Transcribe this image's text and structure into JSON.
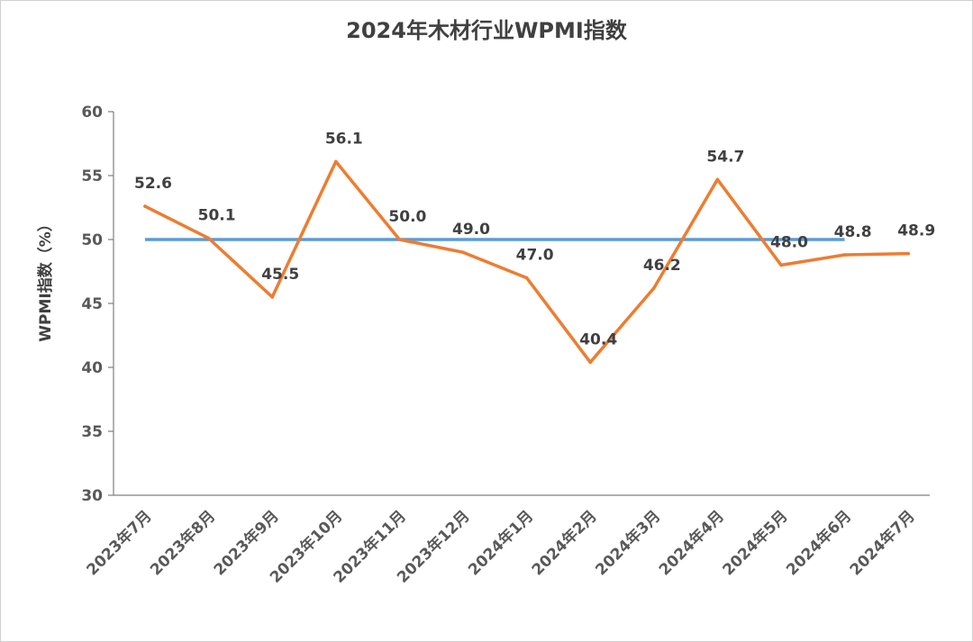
{
  "chart_data": {
    "type": "line",
    "title": "2024年木材行业WPMI指数",
    "xlabel": "",
    "ylabel": "WPMI指数（%）",
    "ylim": [
      30,
      60
    ],
    "yticks": [
      30,
      35,
      40,
      45,
      50,
      55,
      60
    ],
    "grid": false,
    "legend": "none",
    "categories": [
      "2023年7月",
      "2023年8月",
      "2023年9月",
      "2023年10月",
      "2023年11月",
      "2023年12月",
      "2024年1月",
      "2024年2月",
      "2024年3月",
      "2024年4月",
      "2024年5月",
      "2024年6月",
      "2024年7月"
    ],
    "series": [
      {
        "values": [
          52.6,
          50.1,
          45.5,
          56.1,
          50.0,
          49.0,
          47.0,
          40.4,
          46.2,
          54.7,
          48.0,
          48.8,
          48.9
        ],
        "color": "#ED7D31"
      }
    ],
    "reference_line": {
      "value": 50,
      "from_index": 0,
      "to_index": 11,
      "color": "#5B9BD5"
    }
  }
}
